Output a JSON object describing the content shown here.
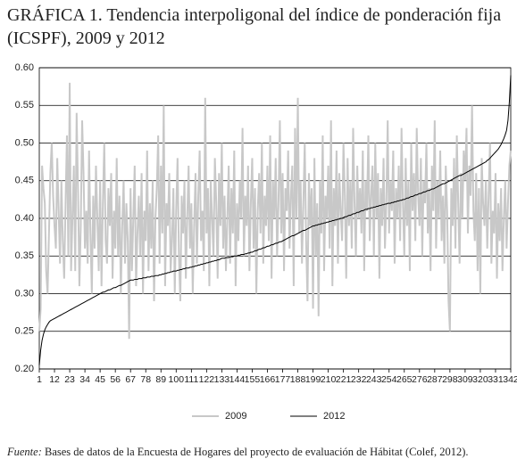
{
  "chart_data": {
    "type": "line",
    "title": "GRÁFICA 1. Tendencia interpoligonal del índice de ponderación fija (ICSPF), 2009 y 2012",
    "source_label": "Fuente:",
    "source": "Bases de datos de la Encuesta de Hogares del proyecto de evaluación de Hábitat (Colef, 2012).",
    "xlim": [
      1,
      342
    ],
    "xticks": [
      1,
      12,
      23,
      34,
      45,
      56,
      67,
      78,
      89,
      100,
      111,
      122,
      133,
      144,
      155,
      166,
      177,
      188,
      199,
      210,
      221,
      232,
      243,
      254,
      265,
      276,
      287,
      298,
      309,
      320,
      331,
      342
    ],
    "ylim": [
      0.2,
      0.6
    ],
    "yticks": [
      {
        "value": 0.2,
        "label": "0.20"
      },
      {
        "value": 0.25,
        "label": "0.25"
      },
      {
        "value": 0.3,
        "label": "0.30"
      },
      {
        "value": 0.35,
        "label": "0.35"
      },
      {
        "value": 0.4,
        "label": "0.40"
      },
      {
        "value": 0.45,
        "label": "0.45"
      },
      {
        "value": 0.5,
        "label": "0.50"
      },
      {
        "value": 0.55,
        "label": "0.55"
      },
      {
        "value": 0.6,
        "label": "0.60"
      }
    ],
    "grid": true,
    "legend": "bottom",
    "x": [
      1,
      2,
      3,
      4,
      5,
      6,
      7,
      8,
      9,
      10,
      11,
      12,
      13,
      14,
      15,
      16,
      17,
      18,
      19,
      20,
      21,
      22,
      23,
      24,
      25,
      26,
      27,
      28,
      29,
      30,
      31,
      32,
      33,
      34,
      35,
      36,
      37,
      38,
      39,
      40,
      41,
      42,
      43,
      44,
      45,
      46,
      47,
      48,
      49,
      50,
      51,
      52,
      53,
      54,
      55,
      56,
      57,
      58,
      59,
      60,
      61,
      62,
      63,
      64,
      65,
      66,
      67,
      68,
      69,
      70,
      71,
      72,
      73,
      74,
      75,
      76,
      77,
      78,
      79,
      80,
      81,
      82,
      83,
      84,
      85,
      86,
      87,
      88,
      89,
      90,
      91,
      92,
      93,
      94,
      95,
      96,
      97,
      98,
      99,
      100,
      101,
      102,
      103,
      104,
      105,
      106,
      107,
      108,
      109,
      110,
      111,
      112,
      113,
      114,
      115,
      116,
      117,
      118,
      119,
      120,
      121,
      122,
      123,
      124,
      125,
      126,
      127,
      128,
      129,
      130,
      131,
      132,
      133,
      134,
      135,
      136,
      137,
      138,
      139,
      140,
      141,
      142,
      143,
      144,
      145,
      146,
      147,
      148,
      149,
      150,
      151,
      152,
      153,
      154,
      155,
      156,
      157,
      158,
      159,
      160,
      161,
      162,
      163,
      164,
      165,
      166,
      167,
      168,
      169,
      170,
      171,
      172,
      173,
      174,
      175,
      176,
      177,
      178,
      179,
      180,
      181,
      182,
      183,
      184,
      185,
      186,
      187,
      188,
      189,
      190,
      191,
      192,
      193,
      194,
      195,
      196,
      197,
      198,
      199,
      200,
      201,
      202,
      203,
      204,
      205,
      206,
      207,
      208,
      209,
      210,
      211,
      212,
      213,
      214,
      215,
      216,
      217,
      218,
      219,
      220,
      221,
      222,
      223,
      224,
      225,
      226,
      227,
      228,
      229,
      230,
      231,
      232,
      233,
      234,
      235,
      236,
      237,
      238,
      239,
      240,
      241,
      242,
      243,
      244,
      245,
      246,
      247,
      248,
      249,
      250,
      251,
      252,
      253,
      254,
      255,
      256,
      257,
      258,
      259,
      260,
      261,
      262,
      263,
      264,
      265,
      266,
      267,
      268,
      269,
      270,
      271,
      272,
      273,
      274,
      275,
      276,
      277,
      278,
      279,
      280,
      281,
      282,
      283,
      284,
      285,
      286,
      287,
      288,
      289,
      290,
      291,
      292,
      293,
      294,
      295,
      296,
      297,
      298,
      299,
      300,
      301,
      302,
      303,
      304,
      305,
      306,
      307,
      308,
      309,
      310,
      311,
      312,
      313,
      314,
      315,
      316,
      317,
      318,
      319,
      320,
      321,
      322,
      323,
      324,
      325,
      326,
      327,
      328,
      329,
      330,
      331,
      332,
      333,
      334,
      335,
      336,
      337,
      338,
      339,
      340,
      341,
      342
    ],
    "series": [
      {
        "name": "2009",
        "color": "#c8c8c8",
        "width": 2,
        "values": [
          0.25,
          0.28,
          0.47,
          0.44,
          0.42,
          0.33,
          0.3,
          0.38,
          0.46,
          0.5,
          0.43,
          0.39,
          0.36,
          0.48,
          0.41,
          0.34,
          0.45,
          0.37,
          0.32,
          0.42,
          0.51,
          0.35,
          0.58,
          0.33,
          0.4,
          0.47,
          0.33,
          0.54,
          0.44,
          0.31,
          0.39,
          0.53,
          0.46,
          0.36,
          0.41,
          0.34,
          0.49,
          0.38,
          0.3,
          0.43,
          0.36,
          0.47,
          0.4,
          0.33,
          0.45,
          0.31,
          0.42,
          0.5,
          0.37,
          0.34,
          0.44,
          0.39,
          0.46,
          0.32,
          0.41,
          0.36,
          0.48,
          0.35,
          0.43,
          0.3,
          0.39,
          0.45,
          0.34,
          0.42,
          0.37,
          0.24,
          0.44,
          0.33,
          0.4,
          0.47,
          0.31,
          0.38,
          0.43,
          0.35,
          0.46,
          0.3,
          0.41,
          0.37,
          0.49,
          0.33,
          0.42,
          0.36,
          0.45,
          0.29,
          0.4,
          0.44,
          0.51,
          0.34,
          0.47,
          0.38,
          0.55,
          0.31,
          0.42,
          0.39,
          0.46,
          0.33,
          0.37,
          0.44,
          0.3,
          0.41,
          0.48,
          0.35,
          0.29,
          0.43,
          0.38,
          0.45,
          0.32,
          0.4,
          0.47,
          0.36,
          0.42,
          0.3,
          0.39,
          0.46,
          0.34,
          0.43,
          0.49,
          0.37,
          0.41,
          0.33,
          0.56,
          0.38,
          0.44,
          0.31,
          0.45,
          0.4,
          0.35,
          0.48,
          0.42,
          0.32,
          0.46,
          0.39,
          0.5,
          0.36,
          0.43,
          0.33,
          0.4,
          0.47,
          0.34,
          0.44,
          0.38,
          0.49,
          0.31,
          0.42,
          0.37,
          0.45,
          0.4,
          0.52,
          0.35,
          0.43,
          0.39,
          0.47,
          0.33,
          0.42,
          0.48,
          0.36,
          0.44,
          0.3,
          0.41,
          0.46,
          0.38,
          0.5,
          0.34,
          0.43,
          0.39,
          0.47,
          0.37,
          0.51,
          0.32,
          0.45,
          0.4,
          0.48,
          0.35,
          0.42,
          0.53,
          0.38,
          0.46,
          0.33,
          0.44,
          0.41,
          0.49,
          0.36,
          0.43,
          0.47,
          0.31,
          0.52,
          0.4,
          0.56,
          0.38,
          0.45,
          0.34,
          0.42,
          0.5,
          0.37,
          0.29,
          0.46,
          0.39,
          0.44,
          0.28,
          0.48,
          0.35,
          0.42,
          0.27,
          0.45,
          0.38,
          0.51,
          0.33,
          0.43,
          0.4,
          0.47,
          0.36,
          0.53,
          0.31,
          0.44,
          0.39,
          0.49,
          0.34,
          0.46,
          0.41,
          0.37,
          0.5,
          0.43,
          0.32,
          0.48,
          0.39,
          0.45,
          0.36,
          0.52,
          0.42,
          0.35,
          0.47,
          0.4,
          0.44,
          0.38,
          0.49,
          0.33,
          0.45,
          0.41,
          0.51,
          0.37,
          0.43,
          0.47,
          0.35,
          0.5,
          0.4,
          0.46,
          0.32,
          0.44,
          0.39,
          0.48,
          0.36,
          0.42,
          0.53,
          0.38,
          0.45,
          0.41,
          0.49,
          0.34,
          0.44,
          0.4,
          0.47,
          0.37,
          0.52,
          0.42,
          0.35,
          0.48,
          0.39,
          0.45,
          0.33,
          0.5,
          0.41,
          0.46,
          0.37,
          0.52,
          0.43,
          0.39,
          0.48,
          0.35,
          0.45,
          0.42,
          0.5,
          0.38,
          0.44,
          0.33,
          0.47,
          0.41,
          0.53,
          0.36,
          0.45,
          0.4,
          0.49,
          0.37,
          0.43,
          0.34,
          0.47,
          0.41,
          0.29,
          0.25,
          0.44,
          0.39,
          0.48,
          0.36,
          0.51,
          0.42,
          0.34,
          0.46,
          0.4,
          0.49,
          0.45,
          0.52,
          0.38,
          0.47,
          0.43,
          0.55,
          0.41,
          0.37,
          0.46,
          0.33,
          0.44,
          0.3,
          0.48,
          0.42,
          0.39,
          0.45,
          0.36,
          0.43,
          0.5,
          0.34,
          0.41,
          0.38,
          0.46,
          0.32,
          0.42,
          0.37,
          0.44,
          0.33,
          0.4,
          0.45,
          0.36,
          0.42,
          0.47,
          0.49
        ]
      },
      {
        "name": "2012",
        "color": "#000000",
        "width": 1,
        "values": [
          0.205,
          0.225,
          0.238,
          0.246,
          0.252,
          0.256,
          0.259,
          0.262,
          0.264,
          0.265,
          0.266,
          0.267,
          0.268,
          0.269,
          0.27,
          0.271,
          0.272,
          0.273,
          0.274,
          0.275,
          0.276,
          0.277,
          0.278,
          0.279,
          0.28,
          0.281,
          0.282,
          0.283,
          0.284,
          0.285,
          0.286,
          0.287,
          0.288,
          0.289,
          0.29,
          0.291,
          0.292,
          0.293,
          0.294,
          0.295,
          0.296,
          0.297,
          0.298,
          0.299,
          0.3,
          0.301,
          0.302,
          0.302,
          0.303,
          0.304,
          0.305,
          0.305,
          0.306,
          0.307,
          0.308,
          0.308,
          0.309,
          0.31,
          0.311,
          0.311,
          0.312,
          0.313,
          0.314,
          0.315,
          0.316,
          0.317,
          0.318,
          0.318,
          0.318,
          0.319,
          0.319,
          0.319,
          0.32,
          0.32,
          0.32,
          0.321,
          0.321,
          0.321,
          0.322,
          0.322,
          0.322,
          0.323,
          0.323,
          0.323,
          0.324,
          0.324,
          0.324,
          0.325,
          0.325,
          0.326,
          0.326,
          0.327,
          0.327,
          0.328,
          0.328,
          0.329,
          0.329,
          0.33,
          0.33,
          0.33,
          0.331,
          0.331,
          0.332,
          0.332,
          0.333,
          0.333,
          0.334,
          0.334,
          0.334,
          0.335,
          0.335,
          0.336,
          0.336,
          0.337,
          0.337,
          0.338,
          0.338,
          0.339,
          0.339,
          0.34,
          0.34,
          0.341,
          0.341,
          0.342,
          0.342,
          0.343,
          0.343,
          0.344,
          0.344,
          0.345,
          0.345,
          0.346,
          0.347,
          0.347,
          0.347,
          0.348,
          0.348,
          0.348,
          0.349,
          0.349,
          0.349,
          0.35,
          0.35,
          0.35,
          0.351,
          0.351,
          0.352,
          0.352,
          0.352,
          0.353,
          0.353,
          0.354,
          0.354,
          0.355,
          0.355,
          0.356,
          0.357,
          0.357,
          0.358,
          0.359,
          0.359,
          0.36,
          0.361,
          0.361,
          0.362,
          0.363,
          0.363,
          0.364,
          0.365,
          0.365,
          0.366,
          0.367,
          0.367,
          0.368,
          0.369,
          0.369,
          0.37,
          0.371,
          0.372,
          0.373,
          0.374,
          0.375,
          0.376,
          0.377,
          0.377,
          0.378,
          0.379,
          0.38,
          0.381,
          0.382,
          0.383,
          0.384,
          0.384,
          0.385,
          0.386,
          0.387,
          0.388,
          0.389,
          0.39,
          0.39,
          0.391,
          0.391,
          0.392,
          0.392,
          0.393,
          0.393,
          0.394,
          0.394,
          0.395,
          0.395,
          0.396,
          0.396,
          0.397,
          0.397,
          0.398,
          0.398,
          0.399,
          0.399,
          0.4,
          0.4,
          0.401,
          0.402,
          0.402,
          0.403,
          0.404,
          0.404,
          0.405,
          0.406,
          0.406,
          0.407,
          0.408,
          0.408,
          0.409,
          0.41,
          0.41,
          0.411,
          0.412,
          0.412,
          0.413,
          0.413,
          0.414,
          0.414,
          0.415,
          0.415,
          0.416,
          0.416,
          0.417,
          0.417,
          0.418,
          0.418,
          0.419,
          0.419,
          0.42,
          0.42,
          0.42,
          0.421,
          0.421,
          0.422,
          0.422,
          0.423,
          0.423,
          0.424,
          0.424,
          0.425,
          0.425,
          0.426,
          0.427,
          0.427,
          0.428,
          0.429,
          0.429,
          0.43,
          0.431,
          0.431,
          0.432,
          0.433,
          0.433,
          0.434,
          0.435,
          0.435,
          0.436,
          0.437,
          0.437,
          0.438,
          0.439,
          0.439,
          0.44,
          0.441,
          0.442,
          0.443,
          0.444,
          0.445,
          0.446,
          0.446,
          0.447,
          0.448,
          0.449,
          0.45,
          0.451,
          0.452,
          0.453,
          0.454,
          0.455,
          0.456,
          0.457,
          0.457,
          0.458,
          0.459,
          0.46,
          0.461,
          0.462,
          0.463,
          0.464,
          0.465,
          0.466,
          0.467,
          0.468,
          0.469,
          0.47,
          0.471,
          0.472,
          0.473,
          0.474,
          0.475,
          0.477,
          0.478,
          0.48,
          0.482,
          0.484,
          0.486,
          0.488,
          0.49,
          0.492,
          0.495,
          0.498,
          0.502,
          0.506,
          0.511,
          0.517,
          0.53,
          0.555,
          0.59
        ]
      }
    ]
  }
}
